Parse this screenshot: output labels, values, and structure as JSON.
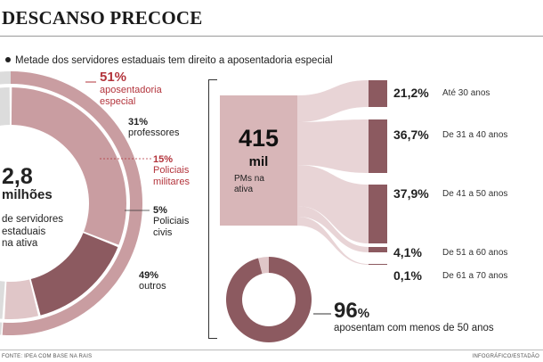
{
  "header": {
    "title": "DESCANSO PRECOCE",
    "subtitle": "Metade dos servidores estaduais tem direito a aposentadoria especial"
  },
  "colors": {
    "dark": "#8c5a60",
    "medium": "#c99da1",
    "light": "#e0c6c8",
    "grey": "#dcdcdc",
    "accent_red": "#b3343c"
  },
  "center": {
    "value": "2,8",
    "unit": "milhões",
    "label_line1": "de servidores",
    "label_line2": "estaduais",
    "label_line3": "na ativa"
  },
  "donut": {
    "special": {
      "pct": "51%",
      "label_line1": "aposentadoria",
      "label_line2": "especial"
    },
    "segments": [
      {
        "pct": "31%",
        "label_line1": "professores",
        "label_line2": ""
      },
      {
        "pct": "15%",
        "label_line1": "Policiais",
        "label_line2": "militares"
      },
      {
        "pct": "5%",
        "label_line1": "Policiais",
        "label_line2": "civis"
      },
      {
        "pct": "49%",
        "label_line1": "outros",
        "label_line2": ""
      }
    ]
  },
  "pms": {
    "value": "415",
    "unit": "mil",
    "label_line1": "PMs na",
    "label_line2": "ativa"
  },
  "ages": [
    {
      "pct": "21,2%",
      "label": "Até 30 anos"
    },
    {
      "pct": "36,7%",
      "label": "De 31 a 40 anos"
    },
    {
      "pct": "37,9%",
      "label": "De 41 a 50 anos"
    },
    {
      "pct": "4,1%",
      "label": "De 51 a 60 anos"
    },
    {
      "pct": "0,1%",
      "label": "De 61 a 70 anos"
    }
  ],
  "summary": {
    "value": "96",
    "unit": "%",
    "label": "aposentam com menos de 50 anos"
  },
  "footer": {
    "source": "FONTE: IPEA COM BASE NA RAIS",
    "credit": "INFOGRÁFICO/ESTADÃO"
  },
  "chart_data": [
    {
      "type": "pie",
      "title": "",
      "categories": [
        "professores",
        "Policiais militares",
        "Policiais civis",
        "outros"
      ],
      "values": [
        31,
        15,
        5,
        49
      ],
      "group": {
        "name": "aposentadoria especial",
        "value": 51
      }
    },
    {
      "type": "bar",
      "title": "",
      "categories": [
        "Até 30 anos",
        "De 31 a 40 anos",
        "De 41 a 50 anos",
        "De 51 a 60 anos",
        "De 61 a 70 anos"
      ],
      "values": [
        21.2,
        36.7,
        37.9,
        4.1,
        0.1
      ],
      "xlabel": "",
      "ylabel": ""
    },
    {
      "type": "pie",
      "title": "",
      "categories": [
        "aposentam com menos de 50 anos",
        ""
      ],
      "values": [
        96,
        4
      ]
    }
  ]
}
